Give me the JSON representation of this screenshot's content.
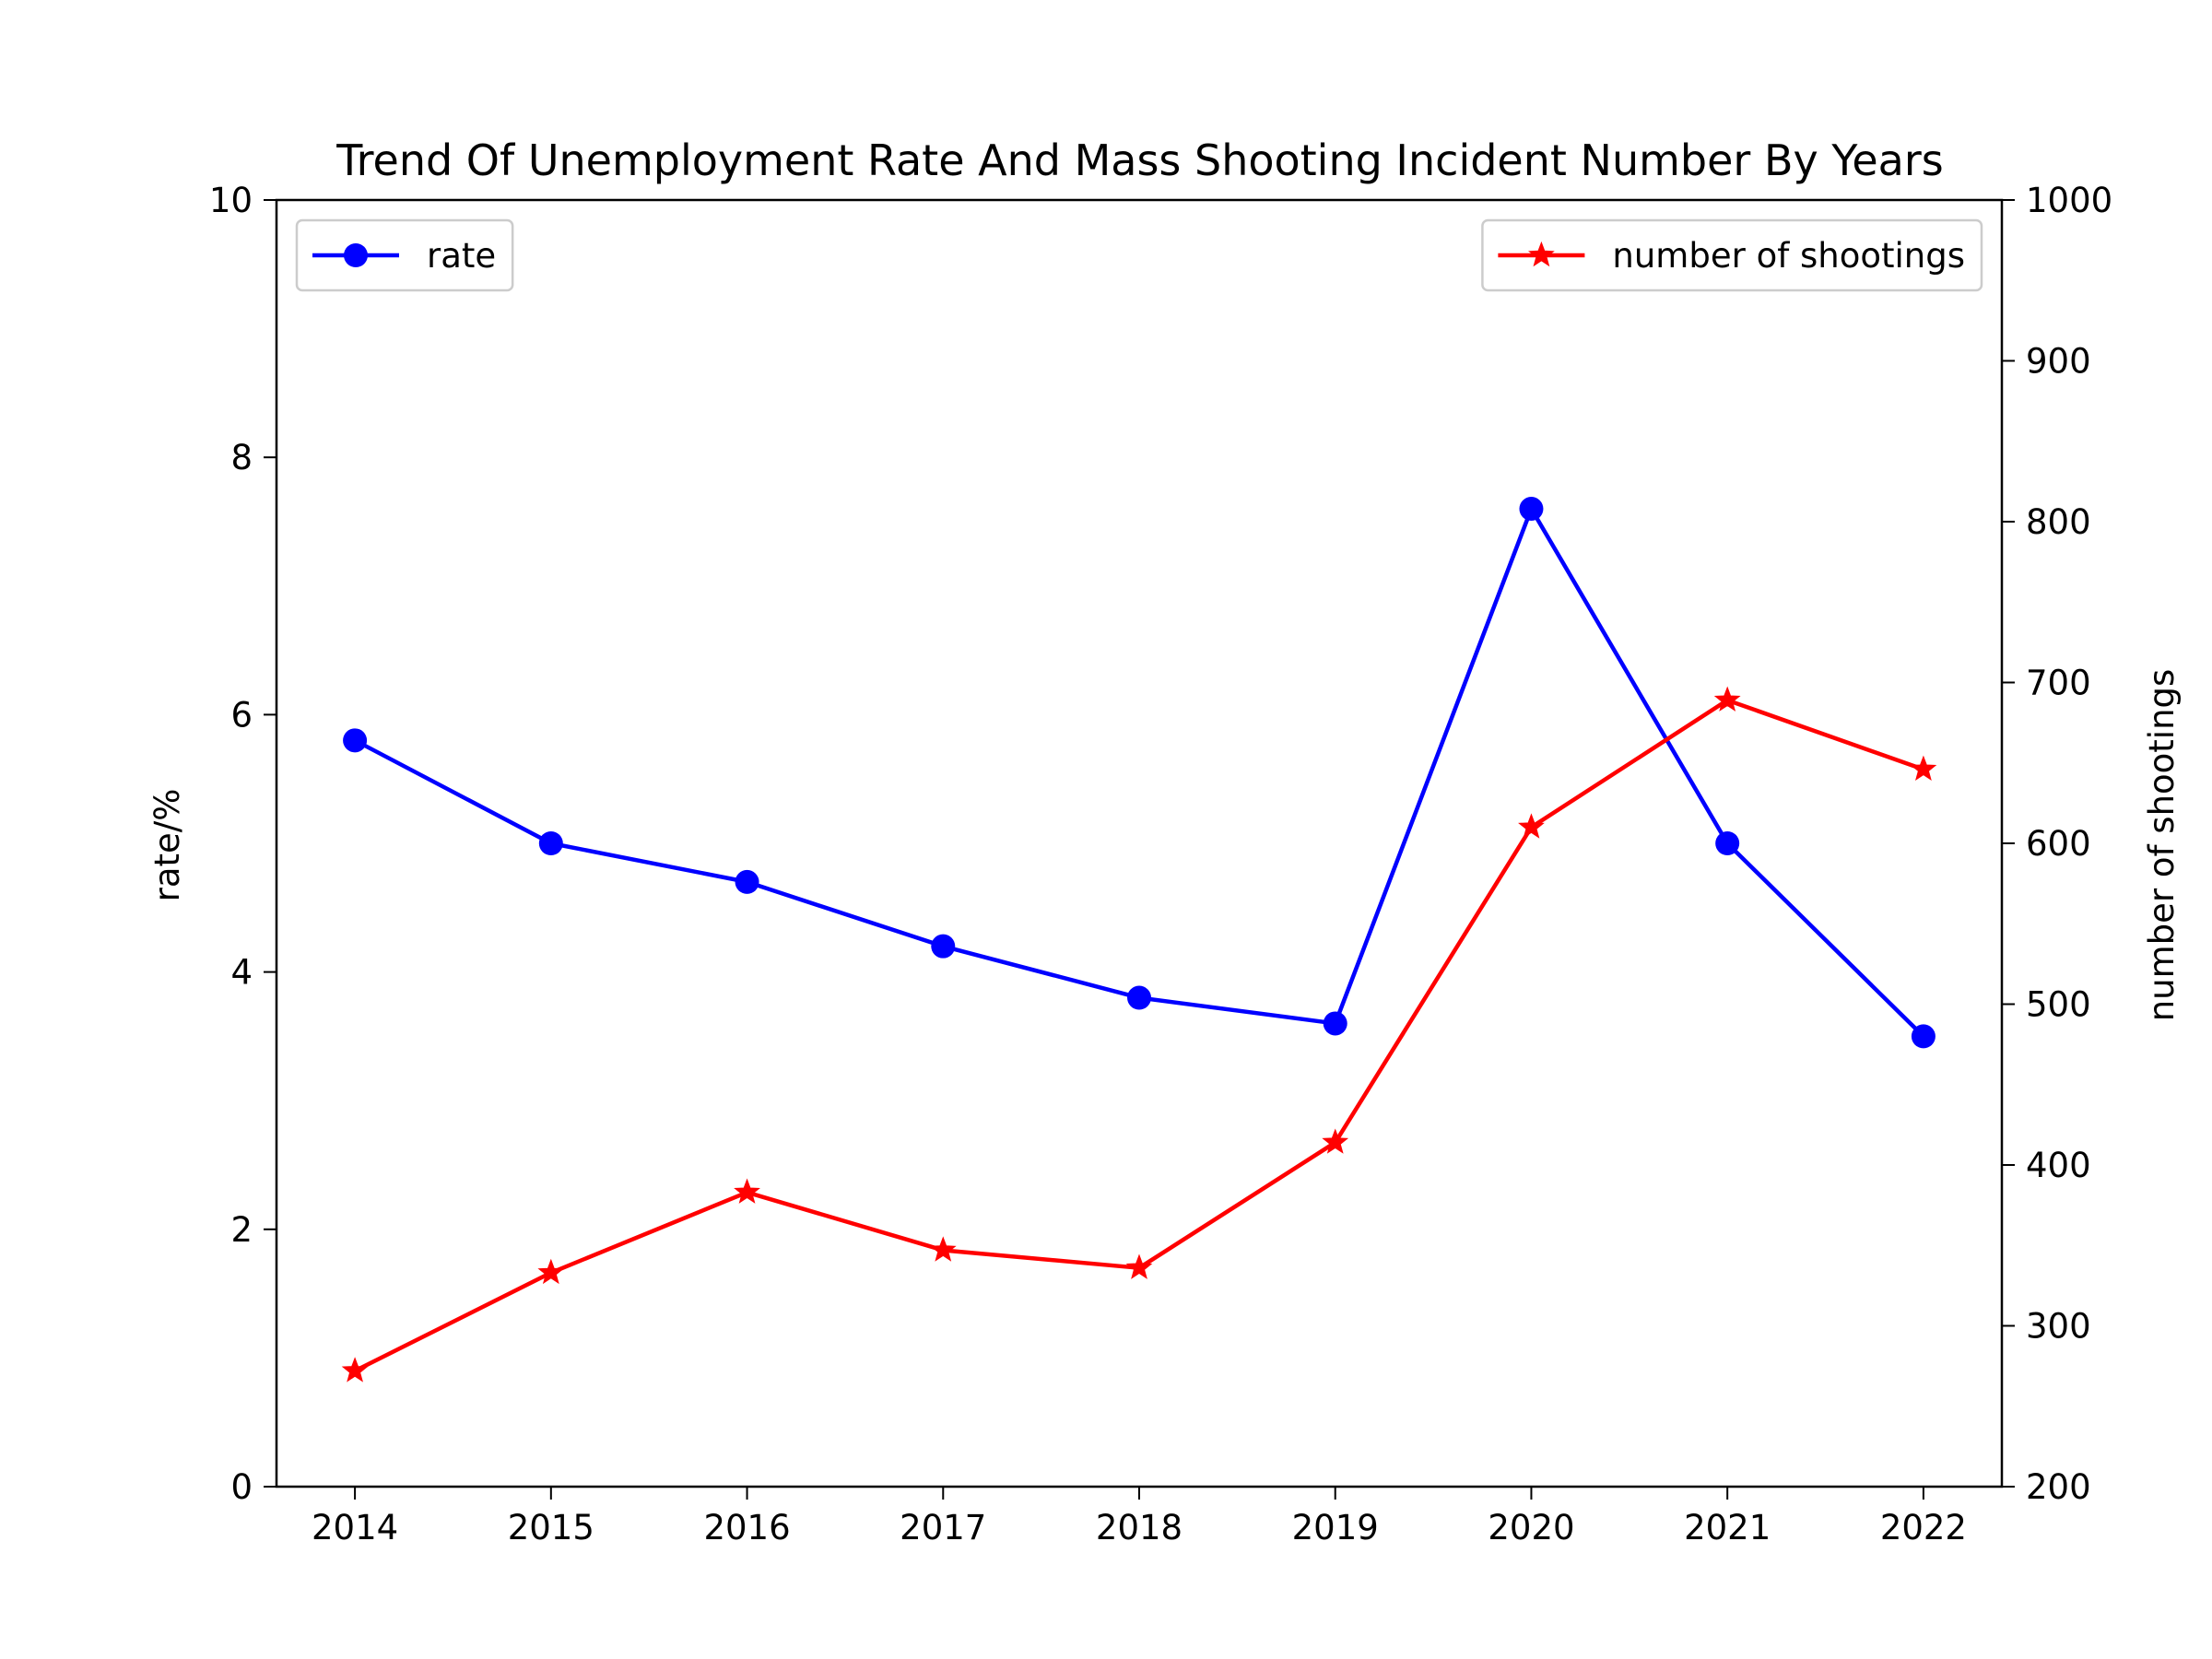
{
  "chart_data": {
    "type": "line",
    "title": "Trend Of Unemployment Rate And Mass Shooting Incident Number By Years",
    "x": [
      2014,
      2015,
      2016,
      2017,
      2018,
      2019,
      2020,
      2021,
      2022
    ],
    "x_tick_labels": [
      "2014",
      "2015",
      "2016",
      "2017",
      "2018",
      "2019",
      "2020",
      "2021",
      "2022"
    ],
    "y_left": {
      "label": "rate/%",
      "lim": [
        0,
        10
      ],
      "ticks": [
        0,
        2,
        4,
        6,
        8,
        10
      ],
      "tick_labels": [
        "0",
        "2",
        "4",
        "6",
        "8",
        "10"
      ]
    },
    "y_right": {
      "label": "number of shootings",
      "lim": [
        200,
        1000
      ],
      "ticks": [
        200,
        300,
        400,
        500,
        600,
        700,
        800,
        900,
        1000
      ],
      "tick_labels": [
        "200",
        "300",
        "400",
        "500",
        "600",
        "700",
        "800",
        "900",
        "1000"
      ]
    },
    "series": [
      {
        "name": "rate",
        "axis": "left",
        "color": "#0000ff",
        "marker": "circle",
        "values": [
          5.8,
          5.0,
          4.7,
          4.2,
          3.8,
          3.6,
          7.6,
          5.0,
          3.5
        ]
      },
      {
        "name": "number of shootings",
        "axis": "right",
        "color": "#ff0000",
        "marker": "star",
        "values": [
          272,
          333,
          383,
          347,
          336,
          414,
          610,
          689,
          646
        ]
      }
    ],
    "legends": [
      {
        "series": "rate",
        "placement": "upper left"
      },
      {
        "series": "number of shootings",
        "placement": "upper right"
      }
    ],
    "grid": false
  }
}
